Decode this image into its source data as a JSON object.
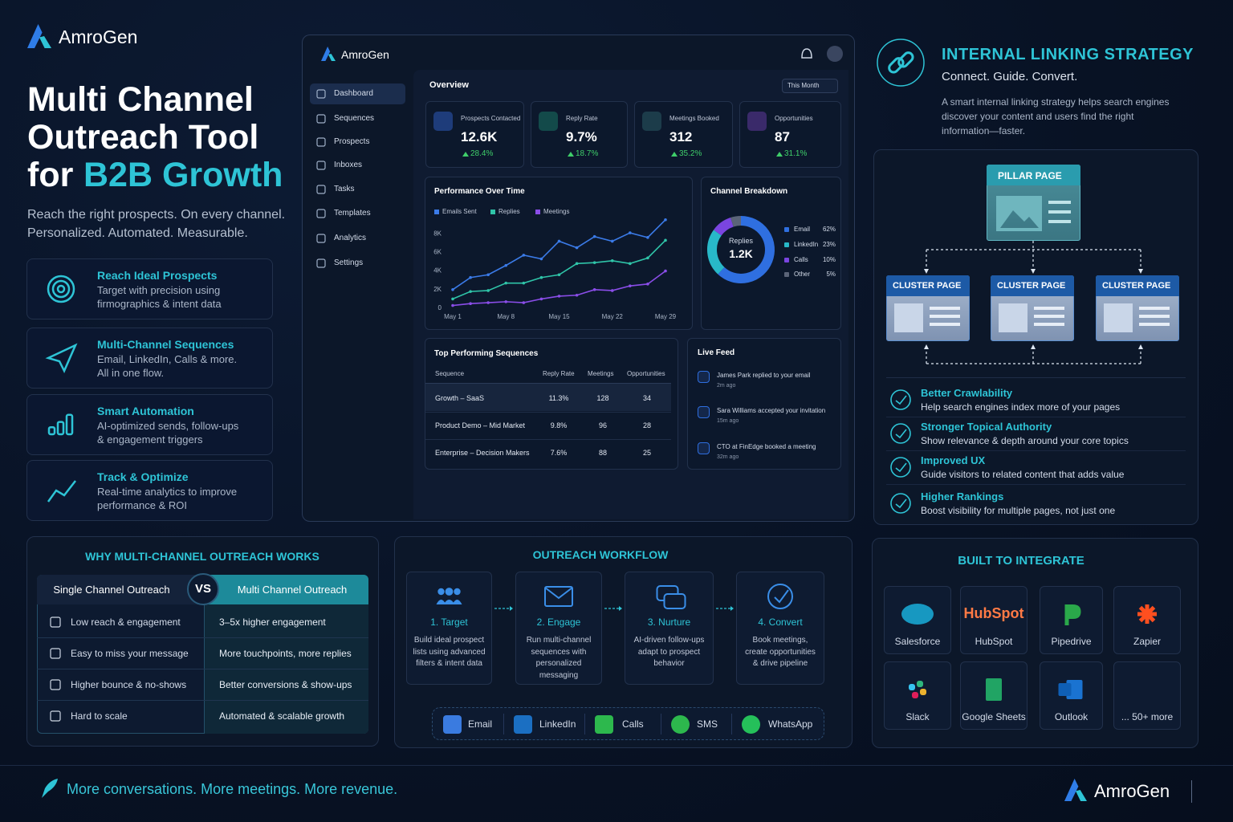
{
  "brand": "AmroGen",
  "hero": {
    "title_lines": [
      "Multi Channel",
      "Outreach Tool"
    ],
    "title_prefix": "for",
    "title_highlight": "B2B Growth",
    "subtitle_lines": [
      "Reach the right prospects. On every channel.",
      "Personalized. Automated. Measurable."
    ]
  },
  "features": [
    {
      "title": "Reach Ideal Prospects",
      "desc": [
        "Target with precision using",
        "firmographics & intent data"
      ]
    },
    {
      "title": "Multi-Channel Sequences",
      "desc": [
        "Email, LinkedIn, Calls & more.",
        "All in one flow."
      ]
    },
    {
      "title": "Smart Automation",
      "desc": [
        "AI-optimized sends, follow-ups",
        "& engagement triggers"
      ]
    },
    {
      "title": "Track & Optimize",
      "desc": [
        "Real-time analytics to improve",
        "performance & ROI"
      ]
    }
  ],
  "dashboard": {
    "brand": "AmroGen",
    "nav": [
      "Dashboard",
      "Sequences",
      "Prospects",
      "Inboxes",
      "Tasks",
      "Templates",
      "Analytics",
      "Settings"
    ],
    "overview": "Overview",
    "period": "This Month",
    "kpis": [
      {
        "label": "Prospects Contacted",
        "value": "12.6K",
        "change": "28.4%"
      },
      {
        "label": "Reply Rate",
        "value": "9.7%",
        "change": "18.7%"
      },
      {
        "label": "Meetings Booked",
        "value": "312",
        "change": "35.2%"
      },
      {
        "label": "Opportunities",
        "value": "87",
        "change": "31.1%"
      }
    ],
    "sequences": {
      "title": "Top Performing Sequences",
      "columns": [
        "Sequence",
        "Reply Rate",
        "Meetings",
        "Opportunities"
      ],
      "rows": [
        [
          "Growth – SaaS",
          "11.3%",
          "128",
          "34"
        ],
        [
          "Product Demo – Mid Market",
          "9.8%",
          "96",
          "28"
        ],
        [
          "Enterprise – Decision Makers",
          "7.6%",
          "88",
          "25"
        ]
      ]
    },
    "live_feed": {
      "title": "Live Feed",
      "items": [
        {
          "text": "James Park replied to your email",
          "time": "2m ago"
        },
        {
          "text": "Sara Williams accepted your invitation",
          "time": "15m ago"
        },
        {
          "text": "CTO at FinEdge booked a meeting",
          "time": "32m ago"
        }
      ]
    }
  },
  "chart_data": [
    {
      "type": "line",
      "title": "Performance Over Time",
      "categories": [
        "May 1",
        null,
        null,
        "May 8",
        null,
        null,
        "May 15",
        null,
        null,
        "May 22",
        null,
        null,
        "May 29"
      ],
      "series": [
        {
          "name": "Emails Sent",
          "color": "#3b7be8",
          "values": [
            2000,
            3300,
            3600,
            4600,
            5700,
            5300,
            7200,
            6500,
            7700,
            7200,
            8100,
            7600,
            9500
          ]
        },
        {
          "name": "Replies",
          "color": "#2fc4a8",
          "values": [
            1000,
            1800,
            1900,
            2700,
            2700,
            3300,
            3600,
            4800,
            4900,
            5100,
            4800,
            5400,
            7300
          ]
        },
        {
          "name": "Meetings",
          "color": "#8a4de8",
          "values": [
            300,
            500,
            600,
            700,
            600,
            1000,
            1300,
            1400,
            2000,
            1900,
            2400,
            2600,
            4000
          ]
        }
      ],
      "ylim": [
        0,
        10000
      ],
      "yticks": [
        0,
        {
          "value": 2000,
          "label": "2K"
        },
        {
          "value": 4000,
          "label": "4K"
        },
        {
          "value": 6000,
          "label": "6K"
        },
        {
          "value": 8000,
          "label": "8K"
        }
      ],
      "grid": false
    },
    {
      "type": "pie",
      "title": "Channel Breakdown",
      "center_label": "Replies",
      "center_value": "1.2K",
      "categories": [
        "Email",
        "LinkedIn",
        "Calls",
        "Other"
      ],
      "values": [
        62,
        23,
        10,
        5
      ],
      "value_labels": [
        "62%",
        "23%",
        "10%",
        "5%"
      ],
      "colors": [
        "#2f6fe0",
        "#28b8c8",
        "#7a45e0",
        "#5b6478"
      ]
    }
  ],
  "linking": {
    "title": "INTERNAL LINKING STRATEGY",
    "subtitle": "Connect. Guide. Convert.",
    "desc": [
      "A smart internal linking strategy helps search engines",
      "discover your content and users find the right",
      "information—faster."
    ],
    "pillar": "PILLAR PAGE",
    "clusters": [
      "CLUSTER PAGE",
      "CLUSTER PAGE",
      "CLUSTER PAGE"
    ],
    "benefits": [
      {
        "title": "Better Crawlability",
        "desc": "Help search engines index more of your pages"
      },
      {
        "title": "Stronger Topical Authority",
        "desc": "Show relevance & depth around your core topics"
      },
      {
        "title": "Improved UX",
        "desc": "Guide visitors to related content that adds value"
      },
      {
        "title": "Higher Rankings",
        "desc": "Boost visibility for multiple pages, not just one"
      }
    ]
  },
  "comparison": {
    "title": "WHY MULTI-CHANNEL OUTREACH WORKS",
    "left_header": "Single Channel Outreach",
    "vs": "VS",
    "right_header": "Multi Channel Outreach",
    "rows": [
      [
        "Low reach & engagement",
        "3–5x higher engagement"
      ],
      [
        "Easy to miss your message",
        "More touchpoints, more replies"
      ],
      [
        "Higher bounce & no-shows",
        "Better conversions & show-ups"
      ],
      [
        "Hard to scale",
        "Automated & scalable growth"
      ]
    ]
  },
  "workflow": {
    "title": "OUTREACH WORKFLOW",
    "steps": [
      {
        "title": "1. Target",
        "desc": [
          "Build ideal prospect",
          "lists using advanced",
          "filters & intent data"
        ]
      },
      {
        "title": "2. Engage",
        "desc": [
          "Run multi-channel",
          "sequences with",
          "personalized",
          "messaging"
        ]
      },
      {
        "title": "3. Nurture",
        "desc": [
          "AI-driven follow-ups",
          "adapt to prospect",
          "behavior"
        ]
      },
      {
        "title": "4. Convert",
        "desc": [
          "Book meetings,",
          "create opportunities",
          "& drive pipeline"
        ]
      }
    ],
    "channels": [
      "Email",
      "LinkedIn",
      "Calls",
      "SMS",
      "WhatsApp"
    ]
  },
  "integrations": {
    "title": "BUILT TO INTEGRATE",
    "items": [
      "Salesforce",
      "HubSpot",
      "Pipedrive",
      "Zapier",
      "Slack",
      "Google Sheets",
      "Outlook",
      "... 50+ more"
    ]
  },
  "footer": {
    "tagline": "More conversations. More meetings. More revenue.",
    "brand": "AmroGen"
  }
}
